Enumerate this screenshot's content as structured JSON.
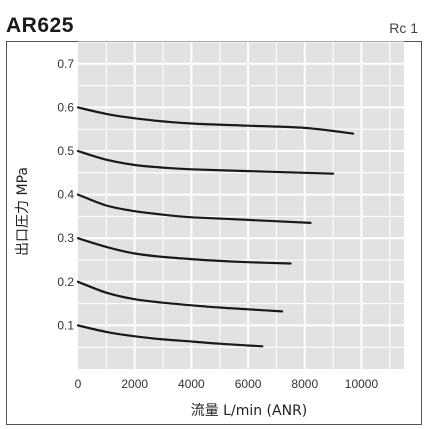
{
  "header": {
    "title": "AR625",
    "port_size": "Rc 1"
  },
  "chart_data": {
    "type": "line",
    "title": "AR625",
    "xlabel": "流量 L/min (ANR)",
    "ylabel": "出口圧力 MPa",
    "xlim": [
      0,
      11500
    ],
    "ylim": [
      0,
      0.75
    ],
    "x_ticks": [
      0,
      2000,
      4000,
      6000,
      8000,
      10000
    ],
    "x_tick_labels": [
      "0",
      "2000",
      "4000",
      "6000",
      "8000",
      "10000"
    ],
    "y_ticks": [
      0.1,
      0.2,
      0.3,
      0.4,
      0.5,
      0.6,
      0.7
    ],
    "y_tick_labels": [
      "0.1",
      "0.2",
      "0.3",
      "0.4",
      "0.5",
      "0.6",
      "0.7"
    ],
    "grid": true,
    "series": [
      {
        "x": [
          0,
          1000,
          2000,
          3000,
          4000,
          5000,
          6000,
          6500
        ],
        "values": [
          0.1,
          0.085,
          0.075,
          0.068,
          0.063,
          0.058,
          0.054,
          0.052
        ]
      },
      {
        "x": [
          0,
          1000,
          2000,
          3000,
          4000,
          5000,
          6000,
          7200
        ],
        "values": [
          0.2,
          0.175,
          0.16,
          0.152,
          0.146,
          0.141,
          0.137,
          0.132
        ]
      },
      {
        "x": [
          0,
          1000,
          2000,
          3000,
          4000,
          5000,
          6000,
          7500
        ],
        "values": [
          0.3,
          0.28,
          0.265,
          0.257,
          0.252,
          0.248,
          0.245,
          0.242
        ]
      },
      {
        "x": [
          0,
          1000,
          2000,
          3000,
          4000,
          6000,
          8200
        ],
        "values": [
          0.4,
          0.375,
          0.362,
          0.354,
          0.348,
          0.342,
          0.335
        ]
      },
      {
        "x": [
          0,
          1000,
          2000,
          3000,
          4000,
          6000,
          8000,
          9000
        ],
        "values": [
          0.5,
          0.48,
          0.468,
          0.462,
          0.458,
          0.454,
          0.45,
          0.448
        ]
      },
      {
        "x": [
          0,
          1000,
          2000,
          3000,
          4000,
          6000,
          8000,
          9700
        ],
        "values": [
          0.6,
          0.585,
          0.575,
          0.568,
          0.563,
          0.558,
          0.553,
          0.54
        ]
      }
    ]
  },
  "colors": {
    "plot_background": "#e2e2e2",
    "grid": "#ffffff",
    "line": "#1a1a1a",
    "frame": "#555555"
  }
}
